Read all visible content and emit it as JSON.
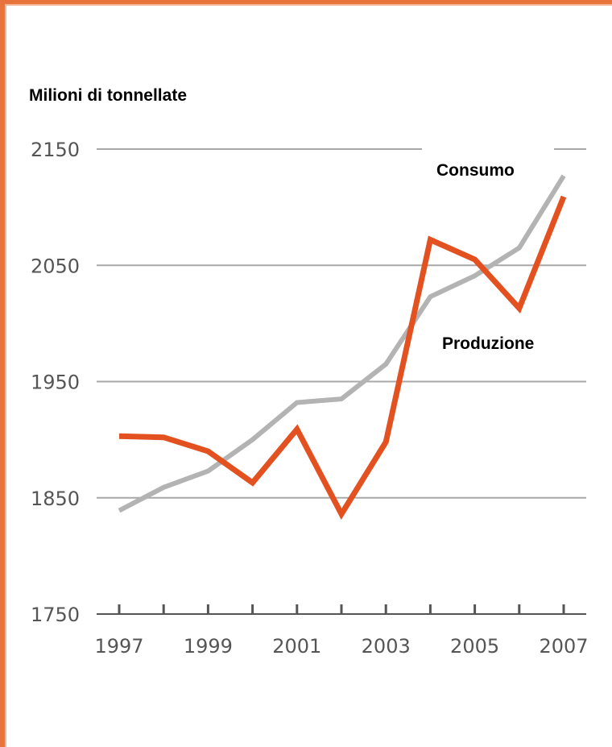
{
  "chart_data": {
    "type": "line",
    "title": "",
    "ylabel": "Milioni di tonnellate",
    "xlabel": "",
    "x": [
      1997,
      1998,
      1999,
      2000,
      2001,
      2002,
      2003,
      2004,
      2005,
      2006,
      2007
    ],
    "x_tick_labels": [
      "1997",
      "1999",
      "2001",
      "2003",
      "2005",
      "2007"
    ],
    "y_tick_labels": [
      "2150",
      "2050",
      "1950",
      "1850",
      "1750"
    ],
    "y_ticks": [
      2150,
      2050,
      1950,
      1850,
      1750
    ],
    "ylim": [
      1750,
      2150
    ],
    "grid": true,
    "series": [
      {
        "name": "Consumo",
        "color": "#b3b3b3",
        "values": [
          1839,
          1859,
          1873,
          1900,
          1932,
          1935,
          1965,
          2023,
          2041,
          2065,
          2127
        ]
      },
      {
        "name": "Produzione",
        "color": "#e2511f",
        "values": [
          1903,
          1902,
          1890,
          1863,
          1909,
          1836,
          1898,
          2072,
          2055,
          2013,
          2109
        ]
      }
    ]
  },
  "colors": {
    "border": "#e8743b",
    "grid": "#a8a8a8",
    "axis": "#555555"
  }
}
